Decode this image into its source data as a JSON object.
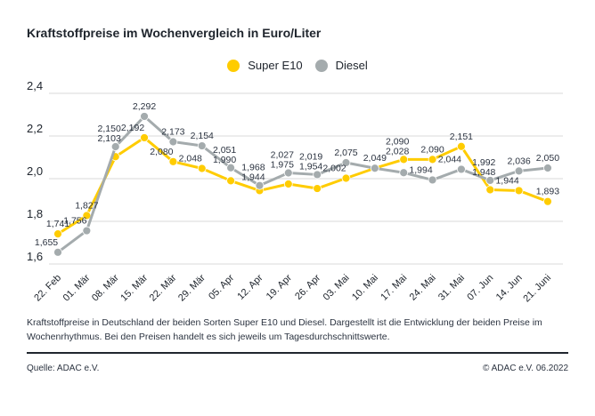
{
  "title": "Kraftstoffpreise im Wochenvergleich in Euro/Liter",
  "legend": [
    {
      "label": "Super E10",
      "color": "#FFCC00"
    },
    {
      "label": "Diesel",
      "color": "#A4ABAD"
    }
  ],
  "colors": {
    "super_e10": "#FFCC00",
    "diesel": "#A4ABAD",
    "grid": "#d8d8d8",
    "text_dark": "#20262e",
    "value_label": "#2b3340"
  },
  "chart_data": {
    "type": "line",
    "title": "Kraftstoffpreise im Wochenvergleich in Euro/Liter",
    "xlabel": "",
    "ylabel": "Euro/Liter",
    "ylim": [
      1.6,
      2.4
    ],
    "grid": true,
    "legend_position": "top-center",
    "yticks": {
      "values": [
        2.4,
        2.2,
        2.0,
        1.8,
        1.6
      ],
      "labels": [
        "2,4",
        "2,2",
        "2,0",
        "1,8",
        "1,6"
      ]
    },
    "categories": [
      "22. Feb",
      "01. Mär",
      "08. Mär",
      "15. Mär",
      "22. Mär",
      "29. Mär",
      "05. Apr",
      "12. Apr",
      "19. Apr",
      "26. Apr",
      "03. Mai",
      "10. Mai",
      "17. Mai",
      "24. Mai",
      "31. Mai",
      "07. Jun",
      "14. Jun",
      "21. Juni"
    ],
    "series": [
      {
        "name": "Super E10",
        "color": "#FFCC00",
        "values": [
          1.741,
          1.827,
          2.103,
          2.192,
          2.08,
          2.048,
          1.99,
          1.944,
          1.975,
          1.954,
          2.002,
          2.049,
          2.09,
          2.09,
          2.151,
          1.948,
          1.944,
          1.893
        ],
        "labels": [
          "1,741",
          "1,827",
          "2,103",
          "2,192",
          "2,080",
          "2,048",
          "1,990",
          "1,944",
          "1,975",
          "1,954",
          "2,002",
          null,
          "2,090",
          "2,090",
          "2,151",
          "1,948",
          "1,944",
          "1,893"
        ]
      },
      {
        "name": "Diesel",
        "color": "#A4ABAD",
        "values": [
          1.655,
          1.756,
          2.15,
          2.292,
          2.173,
          2.154,
          2.051,
          1.968,
          2.027,
          2.019,
          2.075,
          2.049,
          2.028,
          1.994,
          2.044,
          1.992,
          2.036,
          2.05
        ],
        "labels": [
          "1,655",
          "1,756",
          "2,150",
          "2,292",
          "2,173",
          "2,154",
          "2,051",
          "1,968",
          "2,027",
          "2,019",
          "2,075",
          "2,049",
          "2,028",
          "1,994",
          "2,044",
          "1,992",
          "2,036",
          "2,050"
        ]
      }
    ]
  },
  "footer": {
    "description": "Kraftstoffpreise in Deutschland der beiden Sorten Super E10 und Diesel. Dargestellt ist die Entwicklung der beiden Preise im Wochenrhythmus. Bei den Preisen handelt es sich jeweils um Tagesdurchschnittswerte.",
    "source": "Quelle: ADAC e.V.",
    "copyright": "© ADAC e.V. 06.2022"
  }
}
